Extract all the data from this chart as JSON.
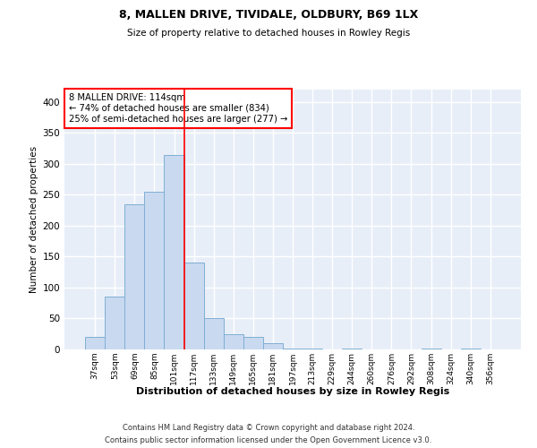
{
  "title1": "8, MALLEN DRIVE, TIVIDALE, OLDBURY, B69 1LX",
  "title2": "Size of property relative to detached houses in Rowley Regis",
  "xlabel": "Distribution of detached houses by size in Rowley Regis",
  "ylabel": "Number of detached properties",
  "footnote1": "Contains HM Land Registry data © Crown copyright and database right 2024.",
  "footnote2": "Contains public sector information licensed under the Open Government Licence v3.0.",
  "bin_labels": [
    "37sqm",
    "53sqm",
    "69sqm",
    "85sqm",
    "101sqm",
    "117sqm",
    "133sqm",
    "149sqm",
    "165sqm",
    "181sqm",
    "197sqm",
    "213sqm",
    "229sqm",
    "244sqm",
    "260sqm",
    "276sqm",
    "292sqm",
    "308sqm",
    "324sqm",
    "340sqm",
    "356sqm"
  ],
  "bar_values": [
    20,
    85,
    235,
    255,
    315,
    140,
    50,
    25,
    20,
    10,
    2,
    2,
    0,
    2,
    0,
    0,
    0,
    2,
    0,
    2,
    0
  ],
  "bar_color": "#c9d9f0",
  "bar_edgecolor": "#7fafd4",
  "bg_color": "#e8eef8",
  "grid_color": "#ffffff",
  "vline_color": "red",
  "annotation_line1": "8 MALLEN DRIVE: 114sqm",
  "annotation_line2": "← 74% of detached houses are smaller (834)",
  "annotation_line3": "25% of semi-detached houses are larger (277) →",
  "ylim": [
    0,
    420
  ],
  "yticks": [
    0,
    50,
    100,
    150,
    200,
    250,
    300,
    350,
    400
  ]
}
